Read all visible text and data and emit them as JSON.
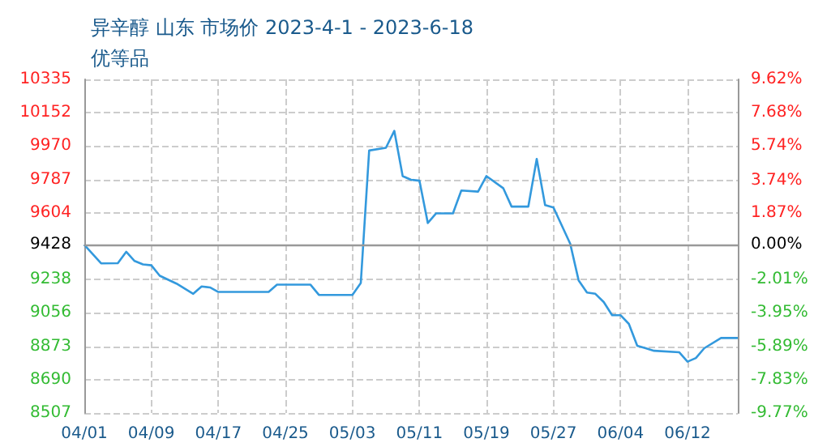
{
  "chart_data": {
    "type": "line",
    "title": "异辛醇 山东 市场价 2023-4-1 - 2023-6-18",
    "subtitle": "优等品",
    "x": [
      "2023-04-01",
      "2023-04-03",
      "2023-04-05",
      "2023-04-06",
      "2023-04-07",
      "2023-04-08",
      "2023-04-09",
      "2023-04-10",
      "2023-04-12",
      "2023-04-14",
      "2023-04-15",
      "2023-04-16",
      "2023-04-17",
      "2023-04-23",
      "2023-04-24",
      "2023-04-28",
      "2023-04-29",
      "2023-05-03",
      "2023-05-04",
      "2023-05-05",
      "2023-05-07",
      "2023-05-08",
      "2023-05-09",
      "2023-05-10",
      "2023-05-11",
      "2023-05-12",
      "2023-05-13",
      "2023-05-15",
      "2023-05-16",
      "2023-05-18",
      "2023-05-19",
      "2023-05-21",
      "2023-05-22",
      "2023-05-24",
      "2023-05-25",
      "2023-05-26",
      "2023-05-27",
      "2023-05-29",
      "2023-05-30",
      "2023-05-31",
      "2023-06-01",
      "2023-06-02",
      "2023-06-03",
      "2023-06-04",
      "2023-06-05",
      "2023-06-06",
      "2023-06-07",
      "2023-06-08",
      "2023-06-11",
      "2023-06-12",
      "2023-06-13",
      "2023-06-14",
      "2023-06-16",
      "2023-06-18"
    ],
    "series": [
      {
        "color": "#3399dd",
        "values": [
          9428,
          9327,
          9328,
          9390,
          9340,
          9321,
          9316,
          9259,
          9216,
          9160,
          9200,
          9195,
          9170,
          9170,
          9210,
          9210,
          9154,
          9154,
          9219,
          9945,
          9960,
          10053,
          9805,
          9785,
          9780,
          9548,
          9601,
          9601,
          9726,
          9720,
          9805,
          9739,
          9638,
          9638,
          9899,
          9646,
          9633,
          9434,
          9234,
          9167,
          9160,
          9115,
          9043,
          9043,
          8995,
          8875,
          8862,
          8848,
          8840,
          8788,
          8808,
          8862,
          8918,
          8918
        ]
      }
    ],
    "xlim": [
      "2023-04-01",
      "2023-06-18"
    ],
    "xticks": [
      {
        "value": "2023-04-01",
        "label": "04/01"
      },
      {
        "value": "2023-04-09",
        "label": "04/09"
      },
      {
        "value": "2023-04-17",
        "label": "04/17"
      },
      {
        "value": "2023-04-25",
        "label": "04/25"
      },
      {
        "value": "2023-05-03",
        "label": "05/03"
      },
      {
        "value": "2023-05-11",
        "label": "05/11"
      },
      {
        "value": "2023-05-19",
        "label": "05/19"
      },
      {
        "value": "2023-05-27",
        "label": "05/27"
      },
      {
        "value": "2023-06-04",
        "label": "06/04"
      },
      {
        "value": "2023-06-12",
        "label": "06/12"
      }
    ],
    "ylim": [
      8507,
      10335
    ],
    "yticks": [
      8507,
      8690,
      8873,
      9056,
      9238,
      9428,
      9604,
      9787,
      9970,
      10152,
      10335
    ],
    "y2lim": [
      -9.77,
      9.62
    ],
    "y2ticks": [
      {
        "value": -9.77,
        "label": "-9.77%"
      },
      {
        "value": -7.83,
        "label": "-7.83%"
      },
      {
        "value": -5.89,
        "label": "-5.89%"
      },
      {
        "value": -3.95,
        "label": "-3.95%"
      },
      {
        "value": -2.01,
        "label": "-2.01%"
      },
      {
        "value": 0,
        "label": "0.00%"
      },
      {
        "value": 1.87,
        "label": "1.87%"
      },
      {
        "value": 3.74,
        "label": "3.74%"
      },
      {
        "value": 5.74,
        "label": "5.74%"
      },
      {
        "value": 7.68,
        "label": "7.68%"
      },
      {
        "value": 9.62,
        "label": "9.62%"
      }
    ],
    "ref_lines": [
      {
        "axis": "y",
        "value": 9428,
        "color": "#999999"
      }
    ],
    "grid": true,
    "marker": "none",
    "line_style": "solid"
  }
}
